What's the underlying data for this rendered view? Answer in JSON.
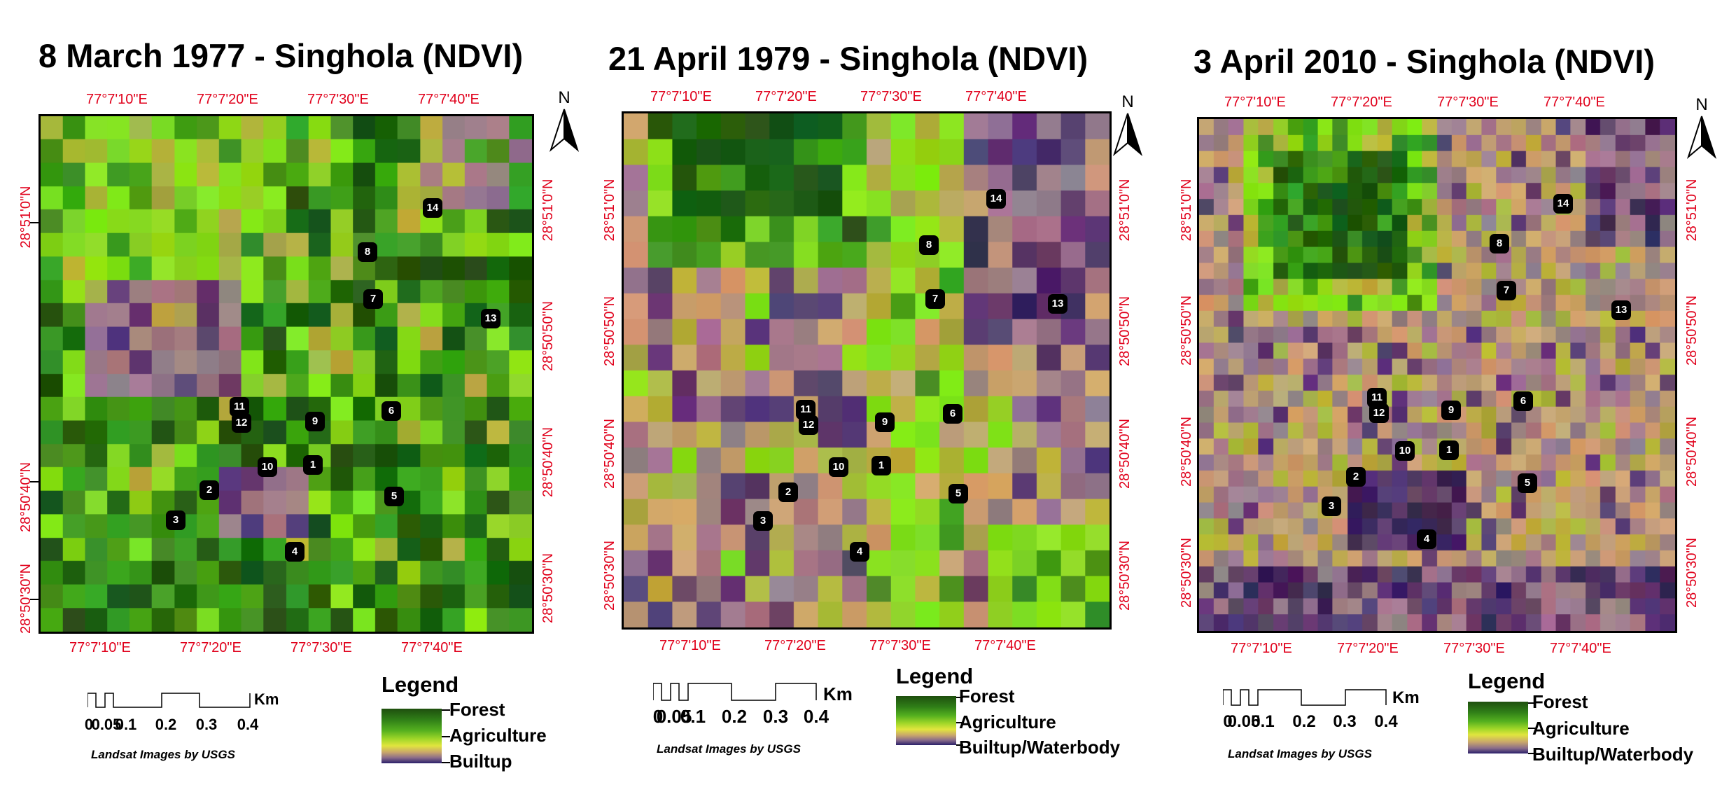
{
  "colors": {
    "forest": "#1e5c10",
    "green": "#3f9a1c",
    "lime": "#88dc1c",
    "agri": "#b0b040",
    "tan": "#c7a06e",
    "mauve": "#9c7a88",
    "purple": "#5d3c6f",
    "deep_purple": "#3a2258",
    "coord_red": "#e0001b"
  },
  "north_arrow": {
    "letter": "N",
    "icon": "north-arrow-icon"
  },
  "panels": [
    {
      "title": "8 March 1977 - Singhola (NDVI)",
      "scene": "1977",
      "top_labels": [
        "77°7'10\"E",
        "77°7'20\"E",
        "77°7'30\"E",
        "77°7'40\"E"
      ],
      "bottom_labels": [
        "77°7'10\"E",
        "77°7'20\"E",
        "77°7'30\"E",
        "77°7'40\"E"
      ],
      "left_labels": [
        "28°51'0\"N",
        "28°50'40\"N",
        "28°50'30\"N"
      ],
      "right_labels": [
        "28°51'0\"N",
        "28°50'50\"N",
        "28°50'40\"N",
        "28°50'30\"N"
      ],
      "markers": [
        "1",
        "2",
        "3",
        "4",
        "5",
        "6",
        "7",
        "8",
        "9",
        "10",
        "11",
        "12",
        "13",
        "14"
      ],
      "scale": {
        "unit": "Km",
        "labels": [
          "0",
          "0.05",
          "0.1",
          "0.2",
          "0.3",
          "0.4"
        ]
      },
      "credit": "Landsat Images by USGS",
      "legend": {
        "title": "Legend",
        "items": [
          "Forest",
          "Agriculture",
          "Builtup"
        ]
      }
    },
    {
      "title": "21 April 1979 - Singhola (NDVI)",
      "scene": "1979",
      "top_labels": [
        "77°7'10\"E",
        "77°7'20\"E",
        "77°7'30\"E",
        "77°7'40\"E"
      ],
      "bottom_labels": [
        "77°7'10\"E",
        "77°7'20\"E",
        "77°7'30\"E",
        "77°7'40\"E"
      ],
      "left_labels": [
        "28°51'0\"N",
        "28°50'50\"N",
        "28°50'40\"N",
        "28°50'30\"N"
      ],
      "right_labels": [
        "28°51'0\"N",
        "28°50'50\"N",
        "28°50'40\"N",
        "28°50'30\"N"
      ],
      "markers": [
        "1",
        "2",
        "3",
        "4",
        "5",
        "6",
        "7",
        "8",
        "9",
        "10",
        "11",
        "12",
        "13",
        "14"
      ],
      "scale": {
        "unit": "Km",
        "labels": [
          "0",
          "0.05",
          "0.1",
          "0.2",
          "0.3",
          "0.4"
        ]
      },
      "credit": "Landsat  Images by USGS",
      "legend": {
        "title": "Legend",
        "items": [
          "Forest",
          "Agriculture",
          "Builtup/Waterbody"
        ]
      }
    },
    {
      "title": "3 April 2010 - Singhola (NDVI)",
      "scene": "2010",
      "top_labels": [
        "77°7'10\"E",
        "77°7'20\"E",
        "77°7'30\"E",
        "77°7'40\"E"
      ],
      "bottom_labels": [
        "77°7'10\"E",
        "77°7'20\"E",
        "77°7'30\"E",
        "77°7'40\"E"
      ],
      "left_labels": [
        "28°51'0\"N",
        "28°50'50\"N",
        "28°50'40\"N",
        "28°50'30\"N"
      ],
      "right_labels": [
        "28°51'0\"N",
        "28°50'50\"N",
        "28°50'40\"N",
        "28°50'30\"N"
      ],
      "markers": [
        "1",
        "2",
        "3",
        "4",
        "5",
        "6",
        "7",
        "8",
        "9",
        "10",
        "11",
        "12",
        "13",
        "14"
      ],
      "scale": {
        "unit": "Km",
        "labels": [
          "0",
          "0.05",
          "0.1",
          "0.2",
          "0.3",
          "0.4"
        ]
      },
      "credit": "Landsat Images by USGS",
      "legend": {
        "title": "Legend",
        "items": [
          "Forest",
          "Agriculture",
          "Builtup/Waterbody"
        ]
      }
    }
  ]
}
